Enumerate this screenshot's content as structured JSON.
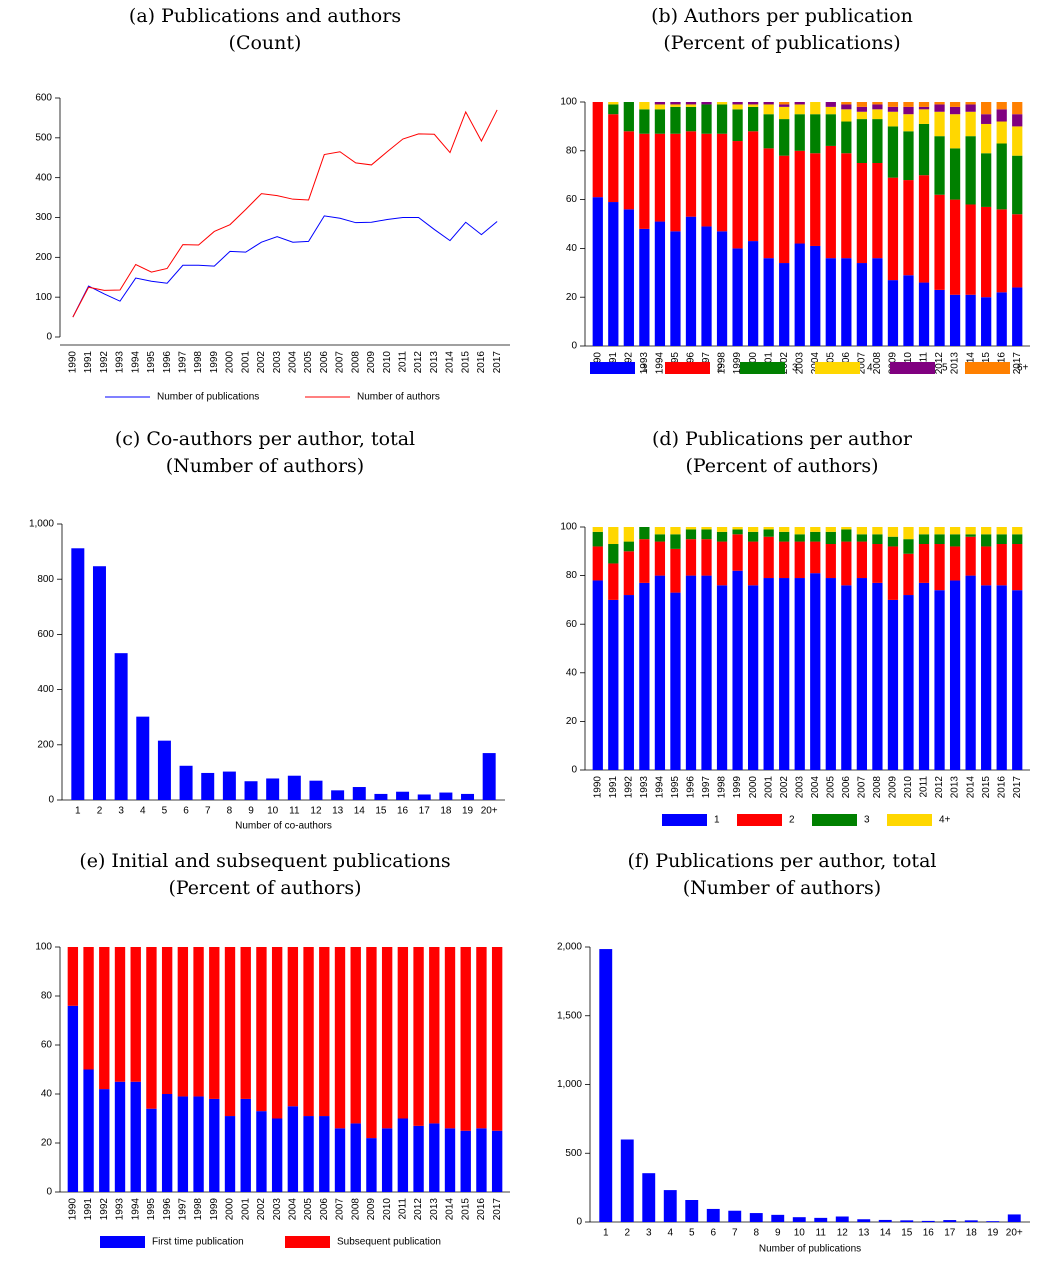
{
  "chart_data": [
    {
      "type": "line",
      "title": "(a) Publications and authors",
      "subtitle": "(Count)",
      "categories": [
        "1990",
        "1991",
        "1992",
        "1993",
        "1994",
        "1995",
        "1996",
        "1997",
        "1998",
        "1999",
        "2000",
        "2001",
        "2002",
        "2003",
        "2004",
        "2005",
        "2006",
        "2007",
        "2008",
        "2009",
        "2010",
        "2011",
        "2012",
        "2013",
        "2014",
        "2015",
        "2016",
        "2017"
      ],
      "series": [
        {
          "name": "Number of publications",
          "color": "#0000ff",
          "values": [
            50,
            128,
            108,
            90,
            148,
            140,
            135,
            180,
            180,
            178,
            215,
            213,
            238,
            252,
            238,
            240,
            304,
            298,
            287,
            288,
            295,
            300,
            300,
            270,
            242,
            288,
            257,
            290
          ]
        },
        {
          "name": "Number of authors",
          "color": "#ff0000",
          "values": [
            50,
            125,
            117,
            118,
            182,
            163,
            172,
            232,
            231,
            265,
            282,
            320,
            360,
            355,
            346,
            344,
            458,
            465,
            437,
            432,
            465,
            497,
            510,
            509,
            463,
            565,
            492,
            570
          ]
        }
      ],
      "ylim": [
        0,
        600
      ],
      "yticks": [
        0,
        100,
        200,
        300,
        400,
        500,
        600
      ],
      "grid": false,
      "legend": "bottom"
    },
    {
      "type": "stacked_bar",
      "title": "(b) Authors per publication",
      "subtitle": "(Percent of publications)",
      "categories": [
        "1990",
        "1991",
        "1992",
        "1993",
        "1994",
        "1995",
        "1996",
        "1997",
        "1998",
        "1999",
        "2000",
        "2001",
        "2002",
        "2003",
        "2004",
        "2005",
        "2006",
        "2007",
        "2008",
        "2009",
        "2010",
        "2011",
        "2012",
        "2013",
        "2014",
        "2015",
        "2016",
        "2017"
      ],
      "series": [
        {
          "name": "1",
          "color": "#0000ff",
          "values": [
            61,
            59,
            56,
            48,
            51,
            47,
            53,
            49,
            47,
            40,
            43,
            36,
            34,
            42,
            41,
            36,
            36,
            34,
            36,
            27,
            29,
            26,
            23,
            21,
            21,
            20,
            22,
            24
          ]
        },
        {
          "name": "2",
          "color": "#ff0000",
          "values": [
            39,
            36,
            32,
            39,
            36,
            40,
            35,
            38,
            40,
            44,
            45,
            45,
            44,
            38,
            38,
            46,
            43,
            41,
            39,
            42,
            39,
            44,
            39,
            39,
            37,
            37,
            34,
            30
          ]
        },
        {
          "name": "3",
          "color": "#008000",
          "values": [
            0,
            4,
            12,
            10,
            10,
            11,
            10,
            12,
            12,
            13,
            10,
            14,
            15,
            15,
            16,
            13,
            13,
            18,
            18,
            21,
            20,
            21,
            24,
            21,
            28,
            22,
            27,
            24
          ]
        },
        {
          "name": "4",
          "color": "#ffd700",
          "values": [
            0,
            1,
            0,
            3,
            2,
            1,
            1,
            0,
            1,
            2,
            1,
            4,
            5,
            4,
            5,
            3,
            5,
            3,
            4,
            6,
            7,
            6,
            10,
            14,
            10,
            12,
            9,
            12
          ]
        },
        {
          "name": "5",
          "color": "#800080",
          "values": [
            0,
            0,
            0,
            0,
            1,
            1,
            1,
            1,
            0,
            1,
            1,
            1,
            1,
            1,
            0,
            2,
            2,
            2,
            2,
            2,
            3,
            1,
            3,
            3,
            3,
            4,
            5,
            5
          ]
        },
        {
          "name": "6+",
          "color": "#ff8000",
          "values": [
            0,
            0,
            0,
            0,
            0,
            0,
            0,
            0,
            0,
            0,
            0,
            0,
            1,
            0,
            0,
            0,
            1,
            2,
            1,
            2,
            2,
            2,
            1,
            2,
            1,
            5,
            3,
            5
          ]
        }
      ],
      "ylim": [
        0,
        100
      ],
      "yticks": [
        0,
        20,
        40,
        60,
        80,
        100
      ],
      "grid": false,
      "legend": "bottom"
    },
    {
      "type": "bar",
      "title": "(c) Co-authors per author, total",
      "subtitle": "(Number of authors)",
      "x_label": "Number of co-authors",
      "categories": [
        "1",
        "2",
        "3",
        "4",
        "5",
        "6",
        "7",
        "8",
        "9",
        "10",
        "11",
        "12",
        "13",
        "14",
        "15",
        "16",
        "17",
        "18",
        "19",
        "20+"
      ],
      "values": [
        912,
        847,
        532,
        302,
        215,
        124,
        98,
        103,
        68,
        78,
        88,
        70,
        35,
        47,
        22,
        30,
        20,
        27,
        22,
        170
      ],
      "color": "#0000ff",
      "ylim": [
        0,
        1000
      ],
      "yticks": [
        0,
        200,
        400,
        600,
        800,
        {
          "value": 1000,
          "label": "1,000"
        }
      ],
      "grid": false
    },
    {
      "type": "stacked_bar",
      "title": "(d) Publications per author",
      "subtitle": "(Percent of authors)",
      "categories": [
        "1990",
        "1991",
        "1992",
        "1993",
        "1994",
        "1995",
        "1996",
        "1997",
        "1998",
        "1999",
        "2000",
        "2001",
        "2002",
        "2003",
        "2004",
        "2005",
        "2006",
        "2007",
        "2008",
        "2009",
        "2010",
        "2011",
        "2012",
        "2013",
        "2014",
        "2015",
        "2016",
        "2017"
      ],
      "series": [
        {
          "name": "1",
          "color": "#0000ff",
          "values": [
            78,
            70,
            72,
            77,
            80,
            73,
            80,
            80,
            76,
            82,
            76,
            79,
            79,
            79,
            81,
            79,
            76,
            79,
            77,
            70,
            72,
            77,
            74,
            78,
            80,
            76,
            76,
            74
          ]
        },
        {
          "name": "2",
          "color": "#ff0000",
          "values": [
            14,
            15,
            18,
            18,
            14,
            18,
            15,
            15,
            18,
            15,
            18,
            17,
            15,
            15,
            13,
            14,
            18,
            15,
            16,
            22,
            17,
            16,
            19,
            14,
            16,
            16,
            17,
            19
          ]
        },
        {
          "name": "3",
          "color": "#008000",
          "values": [
            6,
            8,
            4,
            5,
            3,
            6,
            4,
            4,
            4,
            2,
            4,
            3,
            4,
            3,
            4,
            5,
            5,
            3,
            4,
            4,
            6,
            4,
            4,
            5,
            1,
            5,
            4,
            4
          ]
        },
        {
          "name": "4+",
          "color": "#ffd700",
          "values": [
            2,
            7,
            6,
            0,
            3,
            3,
            1,
            1,
            2,
            1,
            2,
            1,
            2,
            3,
            2,
            2,
            1,
            3,
            3,
            4,
            5,
            3,
            3,
            3,
            3,
            3,
            3,
            3
          ]
        }
      ],
      "ylim": [
        0,
        100
      ],
      "yticks": [
        0,
        20,
        40,
        60,
        80,
        100
      ],
      "grid": false,
      "legend": "bottom"
    },
    {
      "type": "stacked_bar",
      "title": "(e) Initial and subsequent publications",
      "subtitle": "(Percent of authors)",
      "categories": [
        "1990",
        "1991",
        "1992",
        "1993",
        "1994",
        "1995",
        "1996",
        "1997",
        "1998",
        "1999",
        "2000",
        "2001",
        "2002",
        "2003",
        "2004",
        "2005",
        "2006",
        "2007",
        "2008",
        "2009",
        "2010",
        "2011",
        "2012",
        "2013",
        "2014",
        "2015",
        "2016",
        "2017"
      ],
      "series": [
        {
          "name": "First time publication",
          "color": "#0000ff",
          "values": [
            76,
            50,
            42,
            45,
            45,
            34,
            40,
            39,
            39,
            38,
            31,
            38,
            33,
            30,
            35,
            31,
            31,
            26,
            28,
            22,
            26,
            30,
            27,
            28,
            26,
            25,
            26,
            25
          ]
        },
        {
          "name": "Subsequent publication",
          "color": "#ff0000",
          "values": [
            24,
            50,
            58,
            55,
            55,
            66,
            60,
            61,
            61,
            62,
            69,
            62,
            67,
            70,
            65,
            69,
            69,
            74,
            72,
            78,
            74,
            70,
            73,
            72,
            74,
            75,
            74,
            75
          ]
        }
      ],
      "ylim": [
        0,
        100
      ],
      "yticks": [
        0,
        20,
        40,
        60,
        80,
        100
      ],
      "grid": false,
      "legend": "bottom"
    },
    {
      "type": "bar",
      "title": "(f) Publications per author, total",
      "subtitle": "(Number of authors)",
      "x_label": "Number of publications",
      "categories": [
        "1",
        "2",
        "3",
        "4",
        "5",
        "6",
        "7",
        "8",
        "9",
        "10",
        "11",
        "12",
        "13",
        "14",
        "15",
        "16",
        "17",
        "18",
        "19",
        "20+"
      ],
      "values": [
        1985,
        600,
        355,
        232,
        160,
        95,
        82,
        65,
        52,
        35,
        30,
        40,
        20,
        15,
        12,
        8,
        14,
        12,
        6,
        55
      ],
      "color": "#0000ff",
      "ylim": [
        0,
        2000
      ],
      "yticks": [
        0,
        500,
        {
          "value": 1000,
          "label": "1,000"
        },
        {
          "value": 1500,
          "label": "1,500"
        },
        {
          "value": 2000,
          "label": "2,000"
        }
      ],
      "grid": false
    }
  ]
}
